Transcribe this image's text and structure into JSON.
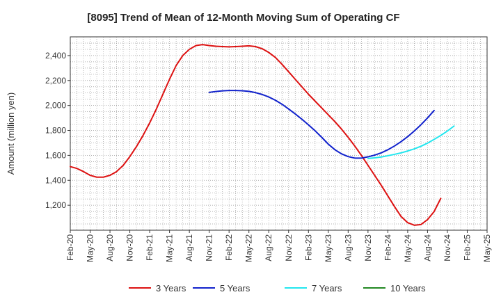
{
  "chart_data": {
    "type": "line",
    "title": "[8095]  Trend of Mean of 12-Month Moving Sum of Operating CF",
    "xlabel": "",
    "ylabel": "Amount (million yen)",
    "ylim": [
      1000,
      2550
    ],
    "yticks": [
      1200,
      1400,
      1600,
      1800,
      2000,
      2200,
      2400
    ],
    "ytick_labels": [
      "1,200",
      "1,400",
      "1,600",
      "1,800",
      "2,000",
      "2,200",
      "2,400"
    ],
    "x_start": "Feb-20",
    "x_count": 64,
    "xtick_labels": [
      "Feb-20",
      "May-20",
      "Aug-20",
      "Nov-20",
      "Feb-21",
      "May-21",
      "Aug-21",
      "Nov-21",
      "Feb-22",
      "May-22",
      "Aug-22",
      "Nov-22",
      "Feb-23",
      "May-23",
      "Aug-23",
      "Nov-23",
      "Feb-24",
      "May-24",
      "Aug-24",
      "Nov-24",
      "Feb-25",
      "May-25"
    ],
    "grid": true,
    "legend_position": "bottom",
    "series": [
      {
        "name": "3 Years",
        "color": "#dd1111",
        "start_index": 0,
        "values": [
          1510,
          1495,
          1470,
          1440,
          1425,
          1425,
          1440,
          1470,
          1520,
          1590,
          1670,
          1760,
          1860,
          1970,
          2090,
          2210,
          2320,
          2400,
          2450,
          2480,
          2488,
          2480,
          2475,
          2472,
          2470,
          2472,
          2475,
          2478,
          2472,
          2455,
          2425,
          2385,
          2330,
          2270,
          2210,
          2150,
          2090,
          2035,
          1980,
          1925,
          1870,
          1810,
          1745,
          1675,
          1600,
          1520,
          1440,
          1360,
          1275,
          1190,
          1110,
          1060,
          1040,
          1045,
          1085,
          1150,
          1255
        ]
      },
      {
        "name": "5 Years",
        "color": "#1122cc",
        "start_index": 21,
        "values": [
          2105,
          2112,
          2117,
          2120,
          2120,
          2118,
          2113,
          2103,
          2088,
          2068,
          2042,
          2010,
          1972,
          1932,
          1890,
          1845,
          1797,
          1745,
          1690,
          1645,
          1612,
          1590,
          1578,
          1578,
          1588,
          1602,
          1620,
          1645,
          1675,
          1710,
          1750,
          1795,
          1845,
          1900,
          1960
        ]
      },
      {
        "name": "7 Years",
        "color": "#22e6ee",
        "start_index": 45,
        "values": [
          1575,
          1580,
          1587,
          1597,
          1608,
          1620,
          1635,
          1652,
          1673,
          1698,
          1728,
          1760,
          1795,
          1835
        ]
      },
      {
        "name": "10 Years",
        "color": "#228822",
        "start_index": 0,
        "values": []
      }
    ]
  }
}
